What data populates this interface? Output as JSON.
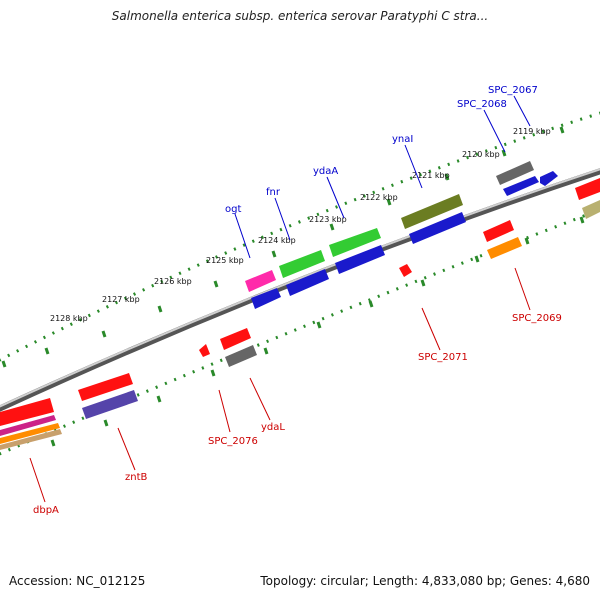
{
  "title": "Salmonella enterica subsp. enterica serovar Paratyphi C stra...",
  "footer": {
    "accession": "Accession: NC_012125",
    "topology": "Topology: circular; Length: 4,833,080 bp; Genes: 4,680"
  },
  "ticks": [
    "2119 kbp",
    "2120 kbp",
    "2121 kbp",
    "2122 kbp",
    "2123 kbp",
    "2124 kbp",
    "2125 kbp",
    "2126 kbp",
    "2127 kbp",
    "2128 kbp"
  ],
  "genes_forward": [
    "SPC_2067",
    "SPC_2068",
    "ynaI",
    "ydaA",
    "fnr",
    "ogt"
  ],
  "genes_reverse": [
    "SPC_2069",
    "SPC_2071",
    "ydaL",
    "SPC_2076",
    "zntB",
    "dbpA"
  ],
  "colors": {
    "forward_label": "#0000cc",
    "reverse_label": "#cc0000",
    "backbone": "#888888",
    "tick": "#2a8a2a"
  }
}
